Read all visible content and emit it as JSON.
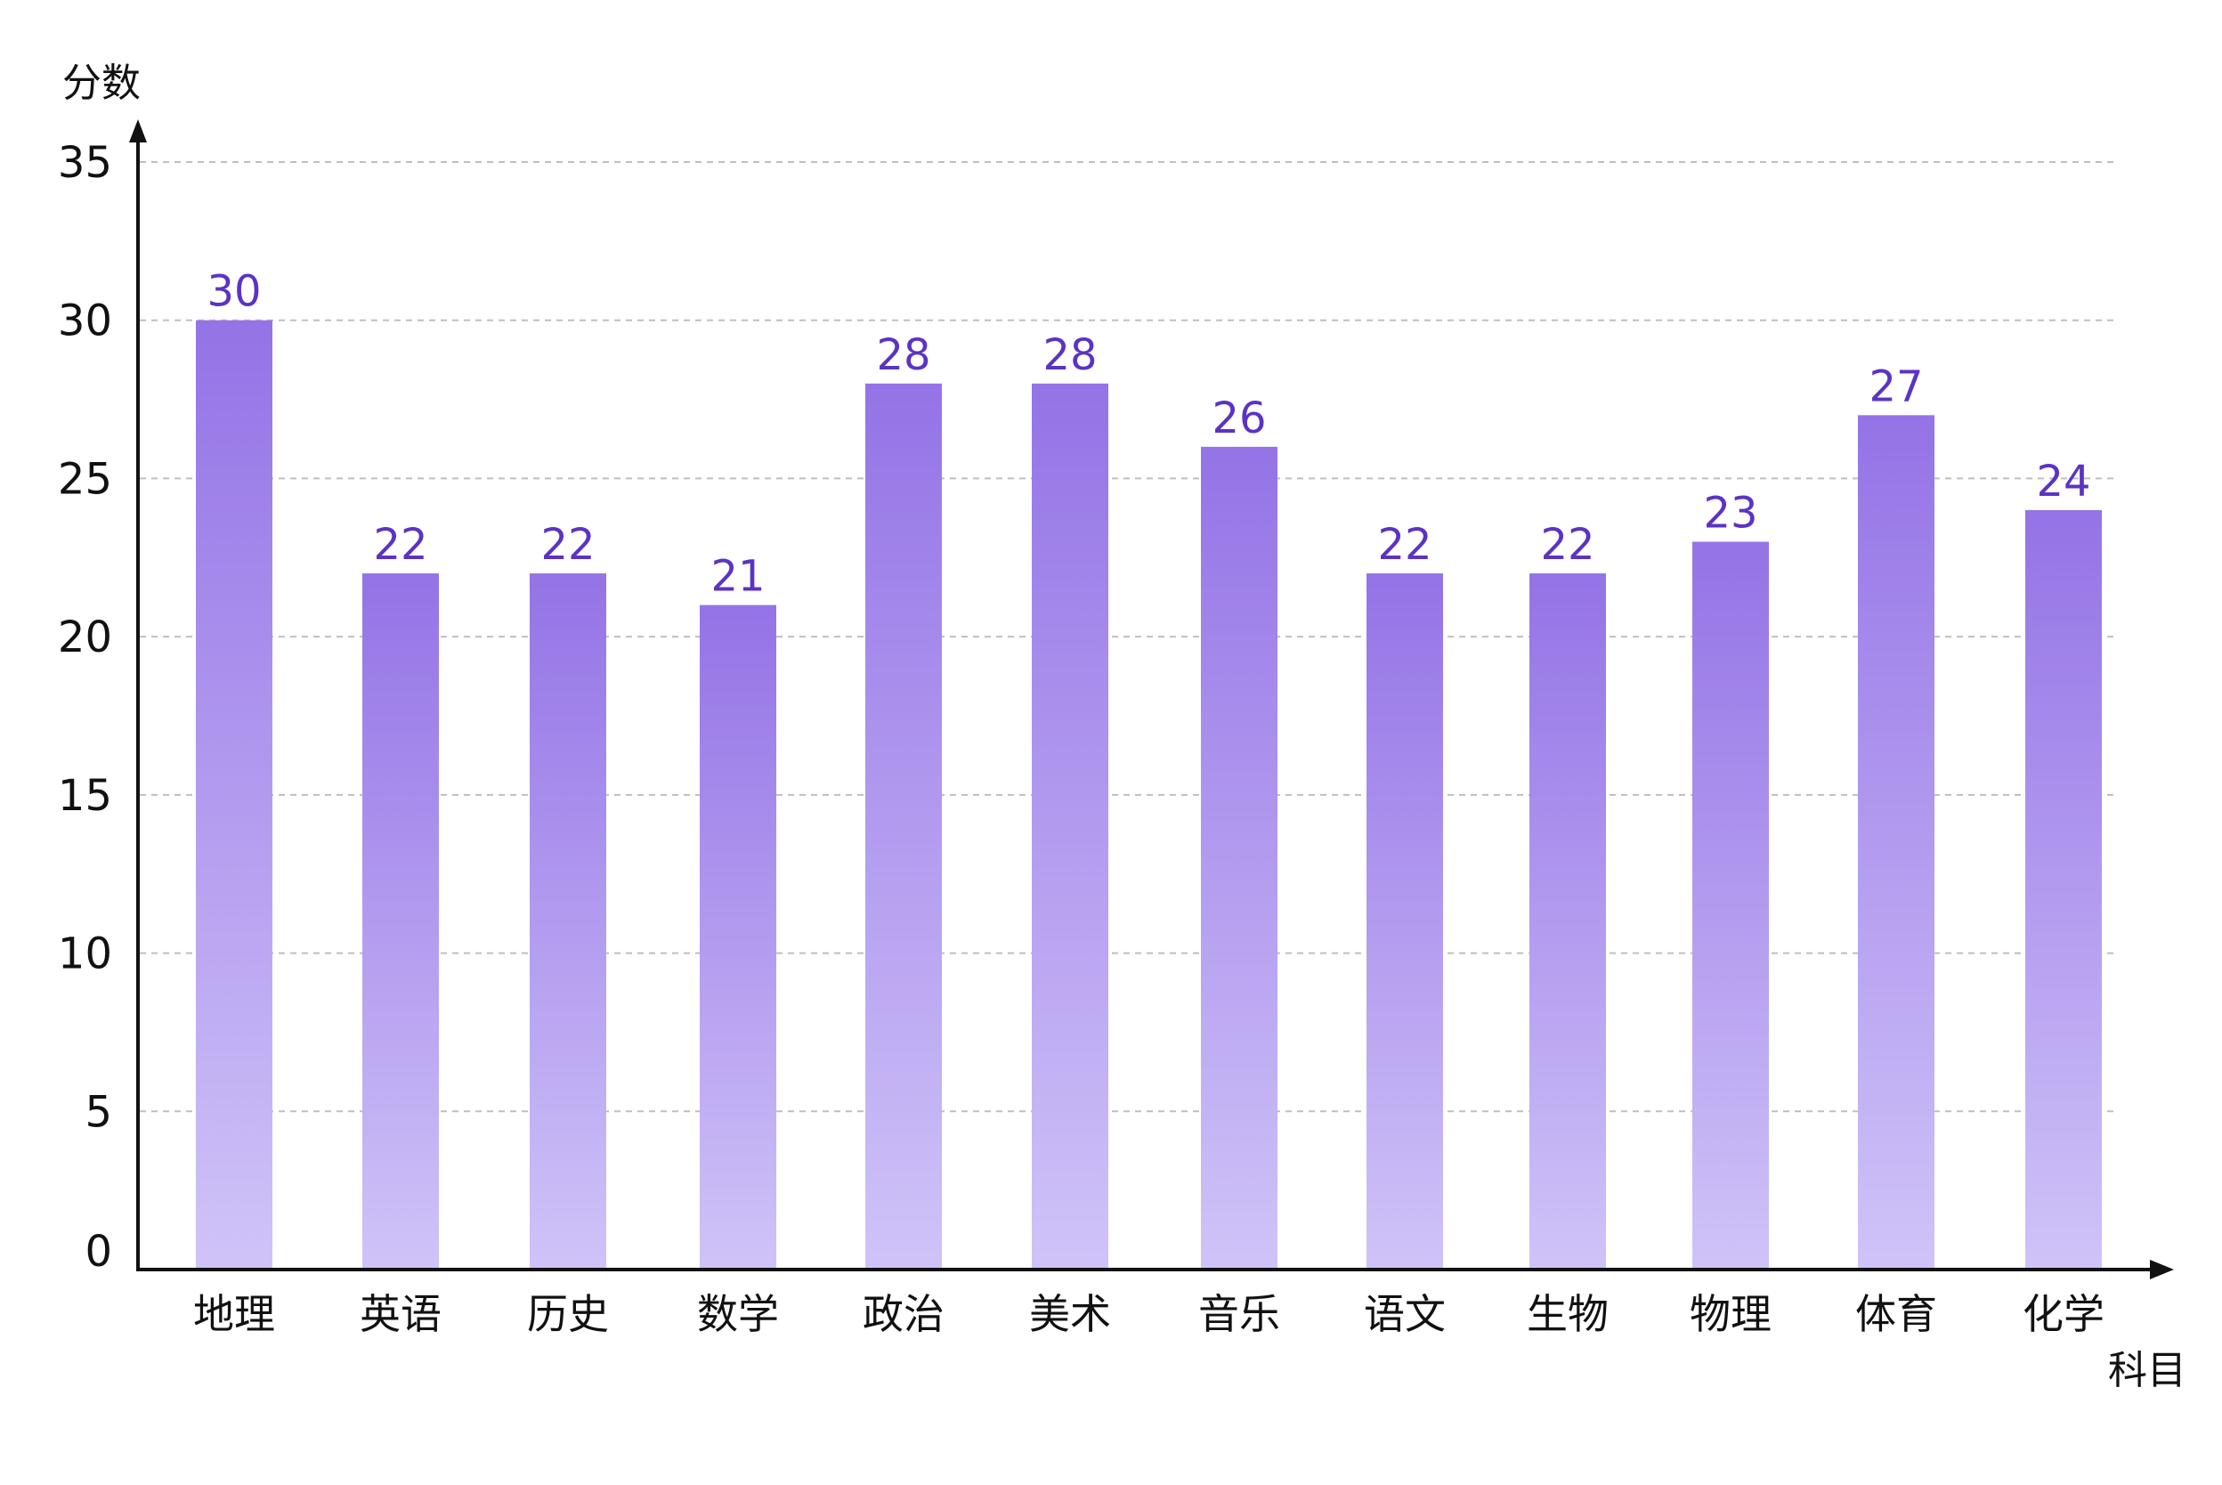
{
  "chart_data": {
    "type": "bar",
    "title": "",
    "xlabel": "科目",
    "ylabel": "分数",
    "categories": [
      "地理",
      "英语",
      "历史",
      "数学",
      "政治",
      "美术",
      "音乐",
      "语文",
      "生物",
      "物理",
      "体育",
      "化学"
    ],
    "values": [
      30,
      22,
      22,
      21,
      28,
      28,
      26,
      22,
      22,
      23,
      27,
      24
    ],
    "ylim": [
      0,
      35
    ],
    "yticks": [
      0,
      5,
      10,
      15,
      20,
      25,
      30,
      35
    ],
    "grid": true,
    "legend": "none",
    "data_labels": true
  },
  "colors": {
    "bar_top": "#9473E6",
    "bar_bottom": "#D0C3F8",
    "value_label": "#5B33C4",
    "axis": "#111111",
    "grid": "#BFBFBF",
    "text": "#111111"
  }
}
